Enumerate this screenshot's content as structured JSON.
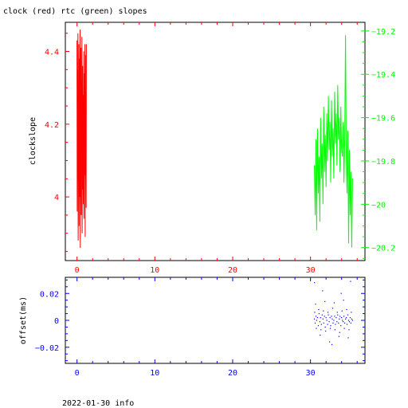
{
  "title": "clock (red) rtc (green) slopes",
  "footer": "2022-01-30 info",
  "colors": {
    "clock": "#ff0000",
    "rtc": "#00ff00",
    "offset": "#0000ff",
    "axis": "#000000"
  },
  "chart_data": [
    {
      "type": "line",
      "title": "clock (red) rtc (green) slopes",
      "ylabel": "clockslope",
      "xlim": [
        -1.5,
        37
      ],
      "ylim": [
        3.825,
        4.48
      ],
      "y2lim": [
        -20.26,
        -19.16
      ],
      "x_ticks": [
        0,
        10,
        20,
        30
      ],
      "y_ticks": [
        4,
        4.2,
        4.4
      ],
      "y2_ticks": [
        -20.2,
        -20,
        -19.8,
        -19.6,
        -19.4,
        -19.2
      ],
      "grid": false,
      "series": [
        {
          "name": "clock",
          "axis": "left",
          "color": "#ff0000",
          "x": [
            0.0,
            0.03,
            0.06,
            0.09,
            0.12,
            0.15,
            0.18,
            0.21,
            0.24,
            0.27,
            0.3,
            0.33,
            0.36,
            0.39,
            0.42,
            0.45,
            0.48,
            0.51,
            0.54,
            0.57,
            0.6,
            0.63,
            0.66,
            0.69,
            0.72,
            0.75,
            0.78,
            0.81,
            0.84,
            0.87,
            0.9,
            0.93,
            0.96,
            0.99,
            1.02,
            1.05,
            1.08,
            1.11,
            1.14,
            1.17,
            1.2
          ],
          "y": [
            4.43,
            3.96,
            4.35,
            4.05,
            4.45,
            3.88,
            4.3,
            4.1,
            4.42,
            3.92,
            4.2,
            4.38,
            4.0,
            4.46,
            3.86,
            4.25,
            4.12,
            4.41,
            3.95,
            4.32,
            4.08,
            4.44,
            3.9,
            4.22,
            4.36,
            4.02,
            4.28,
            3.98,
            4.18,
            4.4,
            3.94,
            4.15,
            4.34,
            4.06,
            4.42,
            3.89,
            4.26,
            4.11,
            4.39,
            3.97,
            4.42
          ]
        },
        {
          "name": "rtc",
          "axis": "right",
          "color": "#00ff00",
          "x": [
            30.5,
            30.6,
            30.7,
            30.8,
            30.9,
            31.0,
            31.1,
            31.2,
            31.3,
            31.4,
            31.5,
            31.6,
            31.7,
            31.8,
            31.9,
            32.0,
            32.1,
            32.2,
            32.3,
            32.4,
            32.5,
            32.6,
            32.7,
            32.8,
            32.9,
            33.0,
            33.1,
            33.2,
            33.3,
            33.4,
            33.5,
            33.6,
            33.7,
            33.8,
            33.9,
            34.0,
            34.1,
            34.2,
            34.3,
            34.4,
            34.5,
            34.6,
            34.7,
            34.8,
            34.9,
            35.0,
            35.1,
            35.2,
            35.3,
            35.4
          ],
          "y": [
            -19.82,
            -20.05,
            -19.7,
            -20.12,
            -19.65,
            -19.95,
            -19.78,
            -20.08,
            -19.6,
            -19.88,
            -19.72,
            -20.0,
            -19.55,
            -19.85,
            -19.68,
            -19.92,
            -19.58,
            -19.8,
            -19.5,
            -19.75,
            -19.62,
            -19.9,
            -19.52,
            -19.78,
            -19.65,
            -19.88,
            -19.48,
            -19.72,
            -19.58,
            -19.82,
            -19.45,
            -19.7,
            -19.6,
            -19.85,
            -19.55,
            -19.75,
            -19.78,
            -19.62,
            -19.9,
            -19.7,
            -19.22,
            -19.8,
            -19.95,
            -19.66,
            -20.18,
            -19.75,
            -20.05,
            -19.85,
            -20.2,
            -19.88
          ]
        }
      ]
    },
    {
      "type": "scatter",
      "ylabel": "offset(ms)",
      "xlim": [
        -1.5,
        37
      ],
      "ylim": [
        -0.032,
        0.032
      ],
      "x_ticks": [
        0,
        10,
        20,
        30
      ],
      "y_ticks": [
        -0.02,
        0,
        0.02
      ],
      "grid": false,
      "series": [
        {
          "name": "offset",
          "color": "#0000ff",
          "x": [
            30.5,
            30.6,
            30.7,
            30.8,
            30.9,
            31.0,
            31.1,
            31.2,
            31.3,
            31.4,
            31.5,
            31.6,
            31.7,
            31.8,
            31.9,
            32.0,
            32.1,
            32.2,
            32.3,
            32.4,
            32.5,
            32.6,
            32.7,
            32.8,
            32.9,
            33.0,
            33.1,
            33.2,
            33.3,
            33.4,
            33.5,
            33.6,
            33.7,
            33.8,
            33.9,
            34.0,
            34.1,
            34.2,
            34.3,
            34.4,
            34.5,
            34.6,
            34.7,
            34.8,
            34.9,
            35.0,
            35.1,
            35.2,
            35.3,
            35.4,
            30.55,
            30.75,
            31.05,
            31.35,
            31.65,
            31.95,
            32.25,
            32.55,
            32.85,
            33.15,
            33.45,
            33.75,
            34.05,
            34.35,
            34.65,
            34.95,
            35.25,
            30.65,
            31.25,
            31.85,
            32.45,
            33.05,
            33.65,
            34.25,
            34.85,
            30.52,
            31.55,
            32.75,
            33.95,
            35.15
          ],
          "y": [
            0.001,
            -0.002,
            0.003,
            0.0,
            0.002,
            -0.004,
            0.005,
            -0.001,
            0.002,
            -0.003,
            0.004,
            0.001,
            -0.002,
            0.003,
            -0.005,
            0.002,
            0.0,
            -0.003,
            0.004,
            -0.001,
            0.002,
            -0.004,
            0.003,
            0.001,
            -0.002,
            0.0,
            0.003,
            -0.003,
            0.002,
            -0.001,
            0.004,
            -0.002,
            0.001,
            0.003,
            -0.004,
            0.002,
            0.0,
            -0.001,
            0.003,
            -0.002,
            0.001,
            0.002,
            -0.003,
            0.004,
            0.0,
            -0.001,
            0.002,
            -0.002,
            0.001,
            0.0,
            0.006,
            -0.006,
            0.008,
            -0.007,
            0.007,
            -0.008,
            0.006,
            -0.006,
            0.009,
            -0.007,
            0.006,
            -0.009,
            0.007,
            -0.006,
            0.008,
            -0.007,
            0.006,
            0.012,
            -0.011,
            0.014,
            -0.016,
            0.013,
            -0.012,
            0.015,
            -0.013,
            0.028,
            0.022,
            -0.018,
            0.02,
            0.029
          ]
        }
      ]
    }
  ]
}
